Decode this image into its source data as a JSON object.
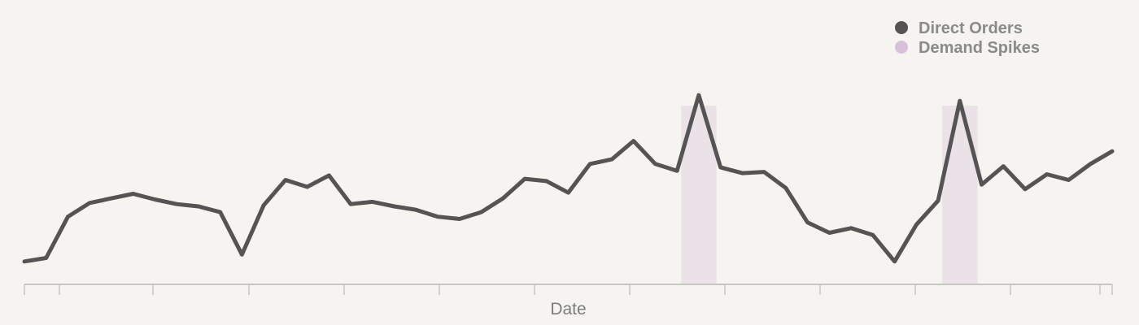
{
  "chart_data": {
    "type": "line",
    "title": "",
    "xlabel": "Date",
    "ylabel": "",
    "grid": false,
    "legend_position": "top-right",
    "x": [
      1,
      2,
      3,
      4,
      5,
      6,
      7,
      8,
      9,
      10,
      11,
      12,
      13,
      14,
      15,
      16,
      17,
      18,
      19,
      20,
      21,
      22,
      23,
      24,
      25,
      26,
      27,
      28,
      29,
      30,
      31,
      32,
      33,
      34,
      35,
      36,
      37,
      38,
      39,
      40,
      41,
      42,
      43,
      44,
      45,
      46,
      47,
      48,
      49,
      50,
      51
    ],
    "series": [
      {
        "name": "Direct Orders",
        "color": "#555353",
        "values": [
          5,
          8,
          44,
          56,
          60,
          64,
          59,
          55,
          53,
          48,
          11,
          54,
          76,
          70,
          80,
          55,
          57,
          53,
          50,
          44,
          42,
          48,
          60,
          77,
          75,
          65,
          90,
          94,
          110,
          90,
          84,
          150,
          87,
          82,
          83,
          69,
          39,
          30,
          34,
          28,
          5,
          37,
          58,
          145,
          72,
          88,
          68,
          81,
          76,
          90,
          101
        ]
      }
    ],
    "highlight_series": {
      "name": "Demand Spikes",
      "color": "#d7c1d8",
      "ranges": [
        [
          31,
          33
        ],
        [
          43,
          45
        ]
      ]
    },
    "ylim": [
      -15,
      155
    ]
  }
}
